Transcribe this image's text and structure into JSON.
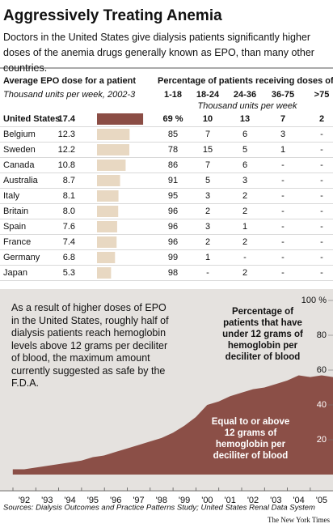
{
  "header": {
    "title": "Aggressively Treating Anemia",
    "subtitle": "Doctors in the United States give dialysis patients significantly higher doses of the anemia drugs generally known as EPO, than many other countries."
  },
  "chart_data": [
    {
      "type": "bar",
      "orientation": "horizontal",
      "title": "Average EPO dose for a patient",
      "subtitle": "Thousand units per week, 2002-3",
      "categories": [
        "United States",
        "Belgium",
        "Sweden",
        "Canada",
        "Australia",
        "Italy",
        "Britain",
        "Spain",
        "France",
        "Germany",
        "Japan"
      ],
      "values": [
        17.4,
        12.3,
        12.2,
        10.8,
        8.7,
        8.1,
        8.0,
        7.6,
        7.4,
        6.8,
        5.3
      ],
      "value_labels": [
        "17.4",
        "12.3",
        "12.2",
        "10.8",
        "8.7",
        "8.1",
        "8.0",
        "7.6",
        "7.4",
        "6.8",
        "5.3"
      ],
      "colors": [
        "#8b4d45",
        "#e8d8c2",
        "#e8d8c2",
        "#e8d8c2",
        "#e8d8c2",
        "#e8d8c2",
        "#e8d8c2",
        "#e8d8c2",
        "#e8d8c2",
        "#e8d8c2",
        "#e8d8c2"
      ],
      "table": {
        "title": "Percentage of patients receiving doses of:",
        "subtitle": "Thousand units per week",
        "columns": [
          "1-18",
          "18-24",
          "24-36",
          "36-75",
          ">75"
        ],
        "rows": [
          [
            "69 %",
            "10",
            "13",
            "7",
            "2"
          ],
          [
            "85",
            "7",
            "6",
            "3",
            "-"
          ],
          [
            "78",
            "15",
            "5",
            "1",
            "-"
          ],
          [
            "86",
            "7",
            "6",
            "-",
            "-"
          ],
          [
            "91",
            "5",
            "3",
            "-",
            "-"
          ],
          [
            "95",
            "3",
            "2",
            "-",
            "-"
          ],
          [
            "96",
            "2",
            "2",
            "-",
            "-"
          ],
          [
            "96",
            "3",
            "1",
            "-",
            "-"
          ],
          [
            "96",
            "2",
            "2",
            "-",
            "-"
          ],
          [
            "99",
            "1",
            "-",
            "-",
            "-"
          ],
          [
            "98",
            "-",
            "2",
            "-",
            "-"
          ]
        ]
      }
    },
    {
      "type": "area",
      "x": [
        1991.5,
        1992,
        1992.5,
        1993,
        1993.5,
        1994,
        1994.5,
        1995,
        1995.5,
        1996,
        1996.5,
        1997,
        1997.5,
        1998,
        1998.5,
        1999,
        1999.5,
        2000,
        2000.5,
        2001,
        2001.5,
        2002,
        2002.5,
        2003,
        2003.5,
        2004,
        2004.5,
        2005,
        2005.5,
        2005.7
      ],
      "series": [
        {
          "name": "Equal to or above 12 grams of hemoglobin per deciliter of blood",
          "color": "#8b4f47",
          "values": [
            3,
            3,
            4,
            5,
            6,
            7,
            8,
            10,
            11,
            13,
            15,
            17,
            19,
            21,
            24,
            28,
            33,
            40,
            42,
            45,
            47,
            49,
            50,
            52,
            54,
            57,
            56,
            57,
            56,
            55
          ]
        }
      ],
      "xlim": [
        1991,
        2005.7
      ],
      "xticks": [
        {
          "value": 1992,
          "label": "'92"
        },
        {
          "value": 1993,
          "label": "'93"
        },
        {
          "value": 1994,
          "label": "'94"
        },
        {
          "value": 1995,
          "label": "'95"
        },
        {
          "value": 1996,
          "label": "'96"
        },
        {
          "value": 1997,
          "label": "'97"
        },
        {
          "value": 1998,
          "label": "'98"
        },
        {
          "value": 1999,
          "label": "'99"
        },
        {
          "value": 2000,
          "label": "'00"
        },
        {
          "value": 2001,
          "label": "'01"
        },
        {
          "value": 2002,
          "label": "'02"
        },
        {
          "value": 2003,
          "label": "'03"
        },
        {
          "value": 2004,
          "label": "'04"
        },
        {
          "value": 2005,
          "label": "'05"
        }
      ],
      "ylim": [
        0,
        100
      ],
      "yticks": [
        20,
        40,
        60,
        80,
        {
          "value": 100,
          "label": "100 %"
        }
      ],
      "background": "#e5e2df",
      "annotations": [
        "As a result of higher doses of EPO in the United States, roughly half of dialysis patients reach hemoglobin levels above 12 grams per deciliter of blood, the maximum amount currently suggested as safe by the F.D.A.",
        "Percentage of patients that have under 12 grams of hemoglobin per deciliter of blood"
      ]
    }
  ],
  "source": "Sources: Dialysis Outcomes and Practice Patterns Study; United States Renal Data System",
  "credit": "The New York Times"
}
